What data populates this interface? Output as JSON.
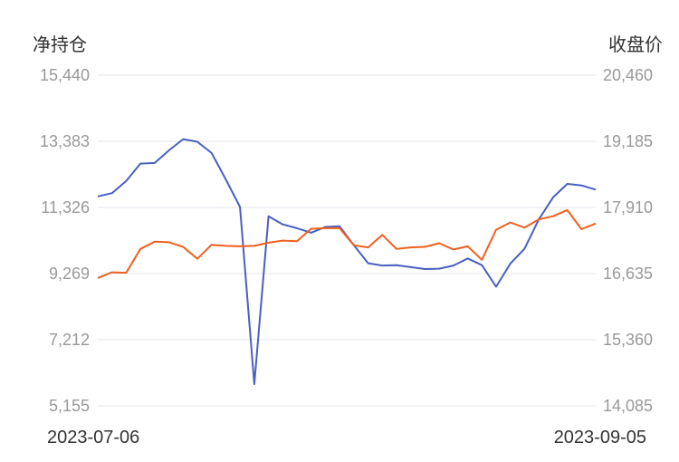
{
  "chart_data": {
    "type": "line",
    "left_axis": {
      "title": "净持仓",
      "range": [
        5155,
        15440
      ],
      "ticks": [
        "5,155",
        "7,212",
        "9,269",
        "11,326",
        "13,383",
        "15,440"
      ]
    },
    "right_axis": {
      "title": "收盘价",
      "range": [
        14085,
        20460
      ],
      "ticks": [
        "14,085",
        "15,360",
        "16,635",
        "17,910",
        "19,185",
        "20,460"
      ]
    },
    "x_range_labels": [
      "2023-07-06",
      "2023-09-05"
    ],
    "grid": true,
    "series": [
      {
        "color": "#4a5fc1",
        "axis": "left",
        "values": [
          11670,
          11770,
          12150,
          12690,
          12710,
          13100,
          13450,
          13370,
          13020,
          12200,
          11340,
          5830,
          11050,
          10800,
          10680,
          10540,
          10720,
          10740,
          10150,
          9590,
          9520,
          9530,
          9470,
          9410,
          9420,
          9520,
          9740,
          9530,
          8860,
          9580,
          10040,
          10950,
          11640,
          12060,
          12010,
          11880
        ]
      },
      {
        "color": "#f0601e",
        "axis": "right",
        "values": [
          16550,
          16660,
          16650,
          17110,
          17250,
          17240,
          17150,
          16920,
          17190,
          17170,
          17160,
          17170,
          17230,
          17270,
          17260,
          17500,
          17510,
          17510,
          17180,
          17140,
          17380,
          17110,
          17140,
          17150,
          17220,
          17100,
          17160,
          16900,
          17480,
          17620,
          17520,
          17680,
          17740,
          17860,
          17490,
          17600
        ]
      }
    ]
  }
}
